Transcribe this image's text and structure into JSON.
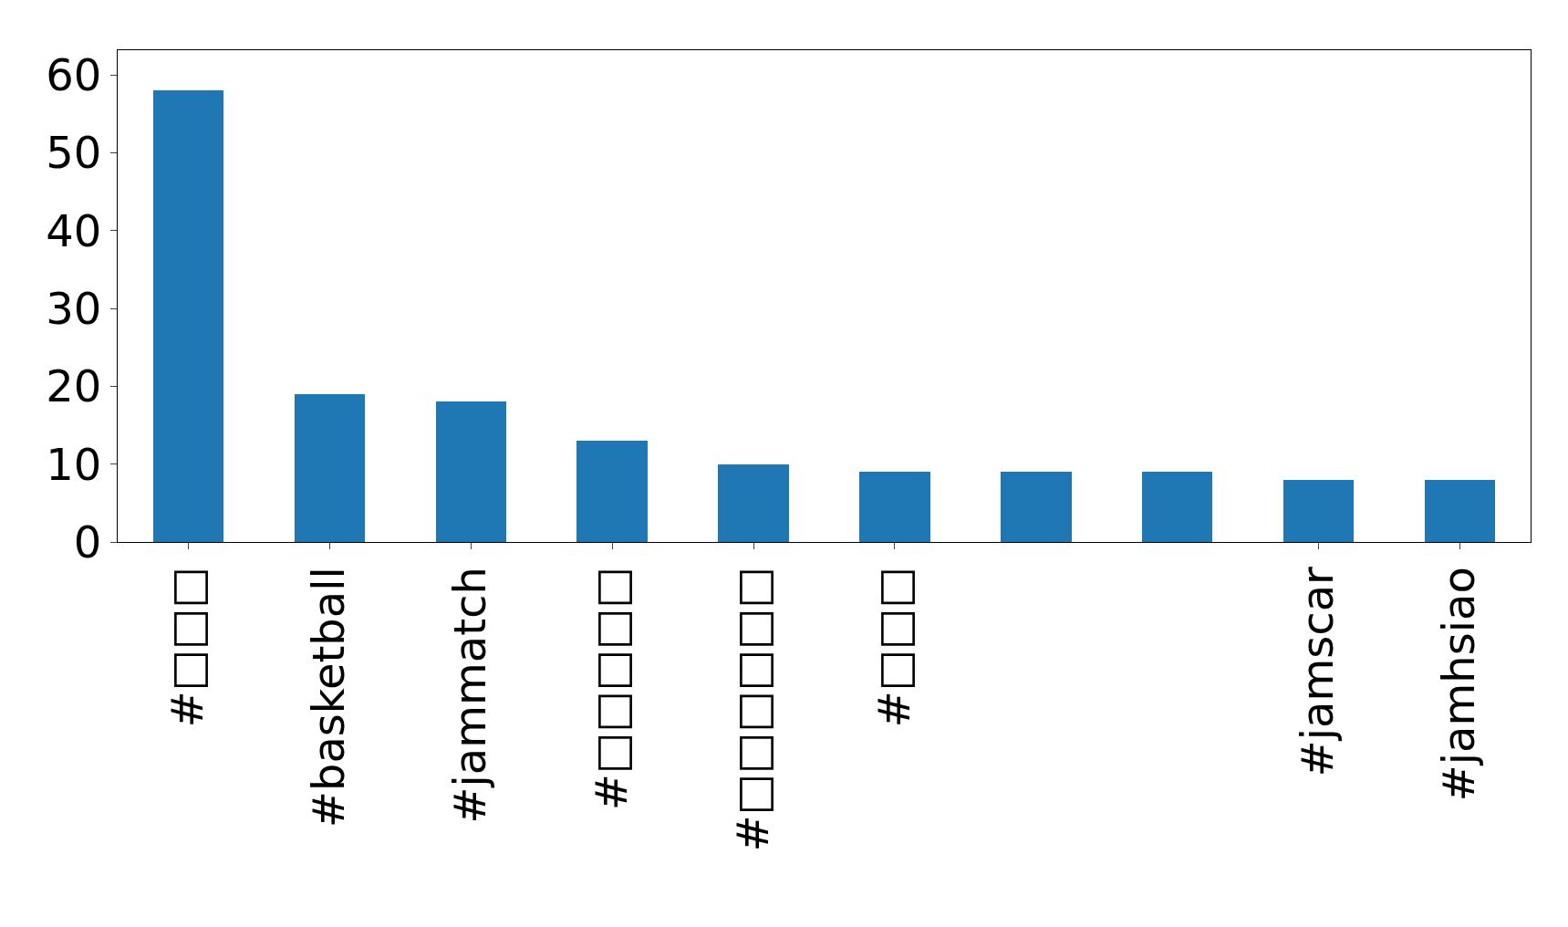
{
  "chart_data": {
    "type": "bar",
    "categories": [
      "#□□□",
      "#basketball",
      "#jammatch",
      "#□□□□□",
      "#□□□□□□",
      "#□□□",
      null,
      null,
      "#jamscar",
      "#jamhsiao"
    ],
    "values": [
      58,
      19,
      18,
      13,
      10,
      9,
      9,
      9,
      8,
      8
    ],
    "color": "#1f77b4",
    "ylim": [
      0,
      63.2
    ],
    "yticks": [
      0,
      10,
      20,
      30,
      40,
      50,
      60
    ],
    "grid": false,
    "legend": false
  }
}
